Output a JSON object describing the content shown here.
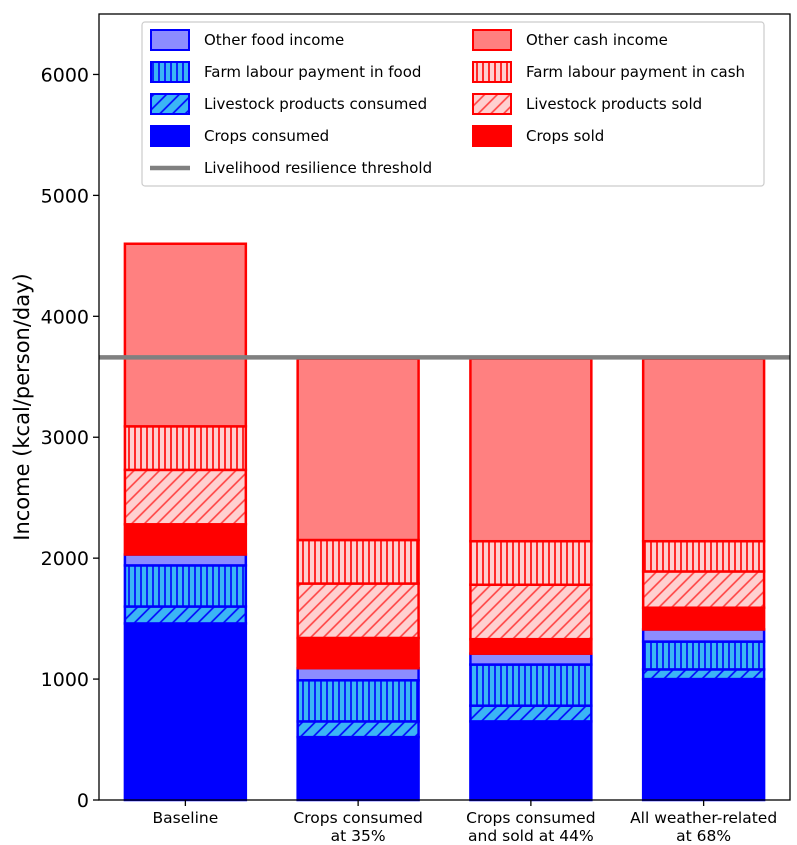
{
  "chart_data": {
    "type": "bar",
    "stacked": true,
    "xlabel": "",
    "ylabel": "Income (kcal/person/day)",
    "ylim": [
      0,
      6500
    ],
    "yticks": [
      0,
      1000,
      2000,
      3000,
      4000,
      5000,
      6000
    ],
    "categories": [
      [
        "Baseline"
      ],
      [
        "Crops consumed",
        "at 35%"
      ],
      [
        "Crops consumed",
        "and sold at 44%"
      ],
      [
        "All weather-related",
        "at 68%"
      ]
    ],
    "series": [
      {
        "name": "Crops consumed",
        "fill": "#0000ff",
        "edge": "#0000ff",
        "pattern": "none",
        "values": [
          1460,
          520,
          650,
          1000
        ]
      },
      {
        "name": "Livestock products consumed",
        "fill": "#3bb5f5",
        "edge": "#0000ff",
        "pattern": "diag",
        "values": [
          140,
          130,
          130,
          80
        ]
      },
      {
        "name": "Farm labour payment in food",
        "fill": "#3bb5f5",
        "edge": "#0000ff",
        "pattern": "vert",
        "values": [
          340,
          340,
          340,
          230
        ]
      },
      {
        "name": "Other food income",
        "fill": "#8c8cff",
        "edge": "#0000ff",
        "pattern": "none",
        "values": [
          90,
          100,
          90,
          100
        ]
      },
      {
        "name": "Crops sold",
        "fill": "#ff0000",
        "edge": "#ff0000",
        "pattern": "none",
        "values": [
          250,
          250,
          120,
          180
        ]
      },
      {
        "name": "Livestock products sold",
        "fill": "#ffd0d0",
        "edge": "#ff0000",
        "pattern": "diag",
        "values": [
          450,
          450,
          450,
          300
        ]
      },
      {
        "name": "Farm labour payment in cash",
        "fill": "#ffd0d0",
        "edge": "#ff0000",
        "pattern": "vert",
        "values": [
          360,
          360,
          360,
          250
        ]
      },
      {
        "name": "Other cash income",
        "fill": "#ff8080",
        "edge": "#ff0000",
        "pattern": "none",
        "values": [
          1510,
          1500,
          1510,
          1510
        ]
      }
    ],
    "threshold": {
      "name": "Livelihood resilience threshold",
      "value": 3660,
      "color": "#808080"
    },
    "legend": {
      "placement": "top-center",
      "columns": [
        [
          "Other food income",
          "Farm labour payment in food",
          "Livestock products consumed",
          "Crops consumed",
          "Livelihood resilience threshold"
        ],
        [
          "Other cash income",
          "Farm labour payment in cash",
          "Livestock products sold",
          "Crops sold"
        ]
      ]
    },
    "grid": false
  }
}
